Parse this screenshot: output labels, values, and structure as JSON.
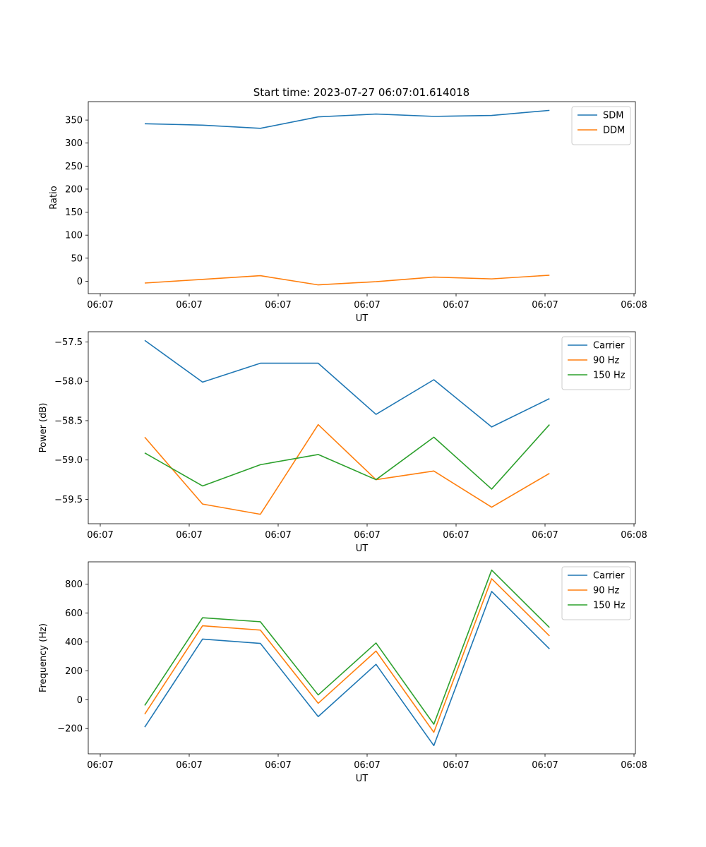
{
  "figure": {
    "title": "Start time: 2023-07-27 06:07:01.614018"
  },
  "chart_data": [
    {
      "type": "line",
      "title": "Start time: 2023-07-27 06:07:01.614018",
      "xlabel": "UT",
      "ylabel": "Ratio",
      "x_tick_labels": [
        "06:07",
        "06:07",
        "06:07",
        "06:07",
        "06:07",
        "06:07",
        "06:08"
      ],
      "y_ticks": [
        0,
        50,
        100,
        150,
        200,
        250,
        300,
        350
      ],
      "y_tick_labels": [
        "0",
        "50",
        "100",
        "150",
        "200",
        "250",
        "300",
        "350"
      ],
      "ylim": [
        -27,
        390
      ],
      "x_points": [
        0.5,
        1.15,
        1.8,
        2.45,
        3.1,
        3.75,
        4.4,
        5.05
      ],
      "xlim": [
        0,
        6
      ],
      "grid": false,
      "legend_position": "top-right",
      "series": [
        {
          "name": "SDM",
          "color": "#1f77b4",
          "values": [
            342,
            339,
            332,
            357,
            363,
            358,
            360,
            371
          ]
        },
        {
          "name": "DDM",
          "color": "#ff7f0e",
          "values": [
            -4,
            4,
            12,
            -8,
            -1,
            9,
            5,
            13
          ]
        }
      ]
    },
    {
      "type": "line",
      "title": "",
      "xlabel": "UT",
      "ylabel": "Power (dB)",
      "x_tick_labels": [
        "06:07",
        "06:07",
        "06:07",
        "06:07",
        "06:07",
        "06:07",
        "06:08"
      ],
      "y_ticks": [
        -59.5,
        -59.0,
        -58.5,
        -58.0,
        -57.5
      ],
      "y_tick_labels": [
        "−59.5",
        "−59.0",
        "−58.5",
        "−58.0",
        "−57.5"
      ],
      "ylim": [
        -59.81,
        -57.37
      ],
      "x_points": [
        0.5,
        1.15,
        1.8,
        2.45,
        3.1,
        3.75,
        4.4,
        5.05
      ],
      "xlim": [
        0,
        6
      ],
      "grid": false,
      "legend_position": "top-right",
      "series": [
        {
          "name": "Carrier",
          "color": "#1f77b4",
          "values": [
            -57.48,
            -58.01,
            -57.77,
            -57.77,
            -58.42,
            -57.98,
            -58.58,
            -58.22
          ]
        },
        {
          "name": "90 Hz",
          "color": "#ff7f0e",
          "values": [
            -58.71,
            -59.56,
            -59.69,
            -58.55,
            -59.25,
            -59.14,
            -59.6,
            -59.17
          ]
        },
        {
          "name": "150 Hz",
          "color": "#2ca02c",
          "values": [
            -58.91,
            -59.33,
            -59.06,
            -58.93,
            -59.25,
            -58.71,
            -59.37,
            -58.55
          ]
        }
      ]
    },
    {
      "type": "line",
      "title": "",
      "xlabel": "UT",
      "ylabel": "Frequency (Hz)",
      "x_tick_labels": [
        "06:07",
        "06:07",
        "06:07",
        "06:07",
        "06:07",
        "06:07",
        "06:08"
      ],
      "y_ticks": [
        -200,
        0,
        200,
        400,
        600,
        800
      ],
      "y_tick_labels": [
        "−200",
        "0",
        "200",
        "400",
        "600",
        "800"
      ],
      "ylim": [
        -375,
        955
      ],
      "x_points": [
        0.5,
        1.15,
        1.8,
        2.45,
        3.1,
        3.75,
        4.4,
        5.05
      ],
      "xlim": [
        0,
        6
      ],
      "grid": false,
      "legend_position": "top-right",
      "series": [
        {
          "name": "Carrier",
          "color": "#1f77b4",
          "values": [
            -190,
            420,
            390,
            -117,
            245,
            -318,
            750,
            352
          ]
        },
        {
          "name": "90 Hz",
          "color": "#ff7f0e",
          "values": [
            -100,
            512,
            482,
            -25,
            337,
            -226,
            838,
            442
          ]
        },
        {
          "name": "150 Hz",
          "color": "#2ca02c",
          "values": [
            -40,
            568,
            540,
            33,
            393,
            -170,
            898,
            500
          ]
        }
      ]
    }
  ]
}
